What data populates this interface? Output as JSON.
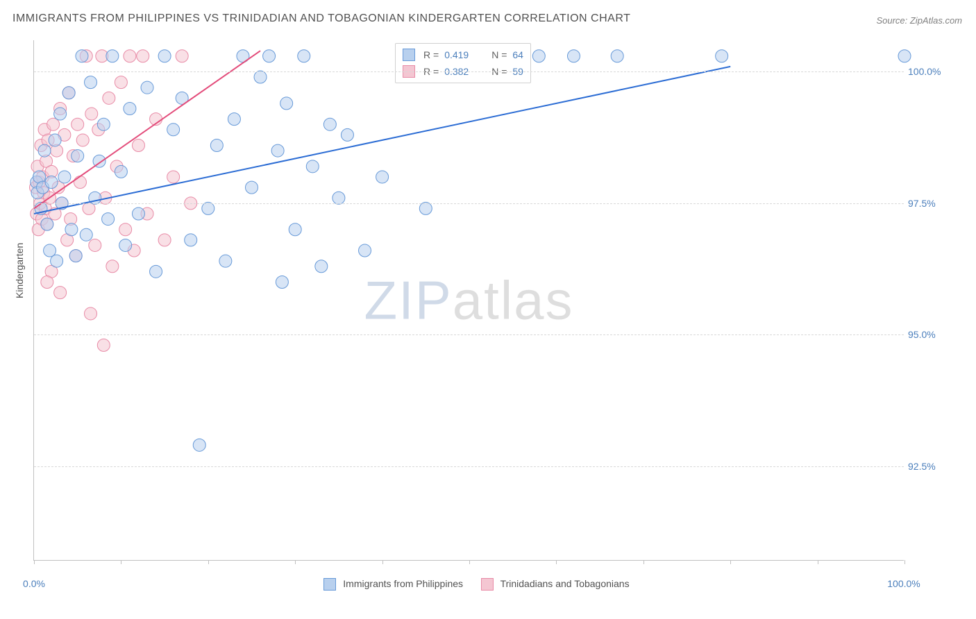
{
  "title": "IMMIGRANTS FROM PHILIPPINES VS TRINIDADIAN AND TOBAGONIAN KINDERGARTEN CORRELATION CHART",
  "source": "Source: ZipAtlas.com",
  "watermark": {
    "part1": "ZIP",
    "part2": "atlas"
  },
  "chart": {
    "type": "scatter",
    "yaxis_title": "Kindergarten",
    "xlim": [
      0,
      100
    ],
    "ylim": [
      90.7,
      100.6
    ],
    "xtick_label_min": "0.0%",
    "xtick_label_max": "100.0%",
    "xtick_positions": [
      0,
      10,
      20,
      30,
      40,
      50,
      60,
      70,
      80,
      90,
      100
    ],
    "ytick_labels": [
      {
        "v": 92.5,
        "label": "92.5%"
      },
      {
        "v": 95.0,
        "label": "95.0%"
      },
      {
        "v": 97.5,
        "label": "97.5%"
      },
      {
        "v": 100.0,
        "label": "100.0%"
      }
    ],
    "grid_color": "#d8d8d8",
    "background_color": "#ffffff",
    "marker_radius": 9,
    "marker_opacity": 0.55,
    "series": [
      {
        "id": "philippines",
        "name": "Immigrants from Philippines",
        "color_fill": "#b8d0ee",
        "color_stroke": "#6699d8",
        "R": "0.419",
        "N": "64",
        "trend": {
          "x1": 0,
          "y1": 97.3,
          "x2": 80,
          "y2": 100.1,
          "color": "#2b6cd4",
          "width": 2
        },
        "points": [
          [
            0.3,
            97.9
          ],
          [
            0.4,
            97.7
          ],
          [
            0.6,
            98.0
          ],
          [
            0.8,
            97.4
          ],
          [
            1.0,
            97.8
          ],
          [
            1.2,
            98.5
          ],
          [
            1.5,
            97.1
          ],
          [
            1.8,
            96.6
          ],
          [
            2.0,
            97.9
          ],
          [
            2.4,
            98.7
          ],
          [
            2.6,
            96.4
          ],
          [
            3.0,
            99.2
          ],
          [
            3.2,
            97.5
          ],
          [
            3.5,
            98.0
          ],
          [
            4.0,
            99.6
          ],
          [
            4.3,
            97.0
          ],
          [
            4.8,
            96.5
          ],
          [
            5.0,
            98.4
          ],
          [
            5.5,
            100.3
          ],
          [
            6.0,
            96.9
          ],
          [
            6.5,
            99.8
          ],
          [
            7.0,
            97.6
          ],
          [
            7.5,
            98.3
          ],
          [
            8.0,
            99.0
          ],
          [
            8.5,
            97.2
          ],
          [
            9.0,
            100.3
          ],
          [
            10.0,
            98.1
          ],
          [
            10.5,
            96.7
          ],
          [
            11.0,
            99.3
          ],
          [
            12.0,
            97.3
          ],
          [
            13.0,
            99.7
          ],
          [
            14.0,
            96.2
          ],
          [
            15.0,
            100.3
          ],
          [
            16.0,
            98.9
          ],
          [
            17.0,
            99.5
          ],
          [
            18.0,
            96.8
          ],
          [
            19.0,
            92.9
          ],
          [
            20.0,
            97.4
          ],
          [
            21.0,
            98.6
          ],
          [
            22.0,
            96.4
          ],
          [
            23.0,
            99.1
          ],
          [
            24.0,
            100.3
          ],
          [
            25.0,
            97.8
          ],
          [
            26.0,
            99.9
          ],
          [
            27.0,
            100.3
          ],
          [
            28.0,
            98.5
          ],
          [
            28.5,
            96.0
          ],
          [
            29.0,
            99.4
          ],
          [
            30.0,
            97.0
          ],
          [
            31.0,
            100.3
          ],
          [
            32.0,
            98.2
          ],
          [
            33.0,
            96.3
          ],
          [
            34.0,
            99.0
          ],
          [
            35.0,
            97.6
          ],
          [
            36.0,
            98.8
          ],
          [
            38.0,
            96.6
          ],
          [
            40.0,
            98.0
          ],
          [
            45.0,
            97.4
          ],
          [
            52.0,
            100.0
          ],
          [
            58.0,
            100.3
          ],
          [
            62.0,
            100.3
          ],
          [
            67.0,
            100.3
          ],
          [
            79.0,
            100.3
          ],
          [
            100.0,
            100.3
          ]
        ]
      },
      {
        "id": "trinidad",
        "name": "Trinidadians and Tobagonians",
        "color_fill": "#f4c6d2",
        "color_stroke": "#e88aa6",
        "R": "0.382",
        "N": "59",
        "trend": {
          "x1": 0,
          "y1": 97.4,
          "x2": 26,
          "y2": 100.4,
          "color": "#e34b7a",
          "width": 2
        },
        "points": [
          [
            0.2,
            97.8
          ],
          [
            0.3,
            97.3
          ],
          [
            0.4,
            98.2
          ],
          [
            0.5,
            97.0
          ],
          [
            0.6,
            97.9
          ],
          [
            0.7,
            97.5
          ],
          [
            0.8,
            98.6
          ],
          [
            0.9,
            97.2
          ],
          [
            1.0,
            98.0
          ],
          [
            1.1,
            97.7
          ],
          [
            1.2,
            98.9
          ],
          [
            1.3,
            97.4
          ],
          [
            1.4,
            98.3
          ],
          [
            1.5,
            97.1
          ],
          [
            1.6,
            98.7
          ],
          [
            1.8,
            97.6
          ],
          [
            2.0,
            98.1
          ],
          [
            2.2,
            99.0
          ],
          [
            2.4,
            97.3
          ],
          [
            2.6,
            98.5
          ],
          [
            2.8,
            97.8
          ],
          [
            3.0,
            99.3
          ],
          [
            3.2,
            97.5
          ],
          [
            3.5,
            98.8
          ],
          [
            3.8,
            96.8
          ],
          [
            4.0,
            99.6
          ],
          [
            4.2,
            97.2
          ],
          [
            4.5,
            98.4
          ],
          [
            4.8,
            96.5
          ],
          [
            5.0,
            99.0
          ],
          [
            5.3,
            97.9
          ],
          [
            5.6,
            98.7
          ],
          [
            6.0,
            100.3
          ],
          [
            6.3,
            97.4
          ],
          [
            6.6,
            99.2
          ],
          [
            7.0,
            96.7
          ],
          [
            7.4,
            98.9
          ],
          [
            7.8,
            100.3
          ],
          [
            8.2,
            97.6
          ],
          [
            8.6,
            99.5
          ],
          [
            9.0,
            96.3
          ],
          [
            9.5,
            98.2
          ],
          [
            10.0,
            99.8
          ],
          [
            10.5,
            97.0
          ],
          [
            11.0,
            100.3
          ],
          [
            11.5,
            96.6
          ],
          [
            12.0,
            98.6
          ],
          [
            12.5,
            100.3
          ],
          [
            13.0,
            97.3
          ],
          [
            14.0,
            99.1
          ],
          [
            15.0,
            96.8
          ],
          [
            16.0,
            98.0
          ],
          [
            17.0,
            100.3
          ],
          [
            18.0,
            97.5
          ],
          [
            6.5,
            95.4
          ],
          [
            8.0,
            94.8
          ],
          [
            2.0,
            96.2
          ],
          [
            3.0,
            95.8
          ],
          [
            1.5,
            96.0
          ]
        ]
      }
    ],
    "legend_bottom": [
      {
        "swatch_fill": "#b8d0ee",
        "swatch_stroke": "#6699d8",
        "label": "Immigrants from Philippines"
      },
      {
        "swatch_fill": "#f4c6d2",
        "swatch_stroke": "#e88aa6",
        "label": "Trinidadians and Tobagonians"
      }
    ]
  }
}
